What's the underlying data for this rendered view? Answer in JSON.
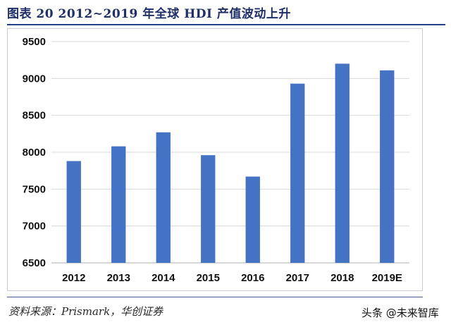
{
  "figure": {
    "title": "图表 20   2012~2019 年全球 HDI 产值波动上升",
    "source": "资料来源：Prismark，华创证券",
    "watermark": "头条 @未来智库"
  },
  "colors": {
    "bar": "#4472c4",
    "gridline": "#d9d9d9",
    "axis": "#bfbfbf",
    "title": "#1f2f6b"
  },
  "chart_data": {
    "type": "bar",
    "title": "",
    "xlabel": "",
    "ylabel": "",
    "categories": [
      "2012",
      "2013",
      "2014",
      "2015",
      "2016",
      "2017",
      "2018",
      "2019E"
    ],
    "values": [
      7880,
      8080,
      8270,
      7960,
      7670,
      8930,
      9200,
      9110
    ],
    "ylim": [
      6500,
      9500
    ],
    "yticks": [
      6500,
      7000,
      7500,
      8000,
      8500,
      9000,
      9500
    ],
    "grid": true,
    "legend": "none"
  }
}
